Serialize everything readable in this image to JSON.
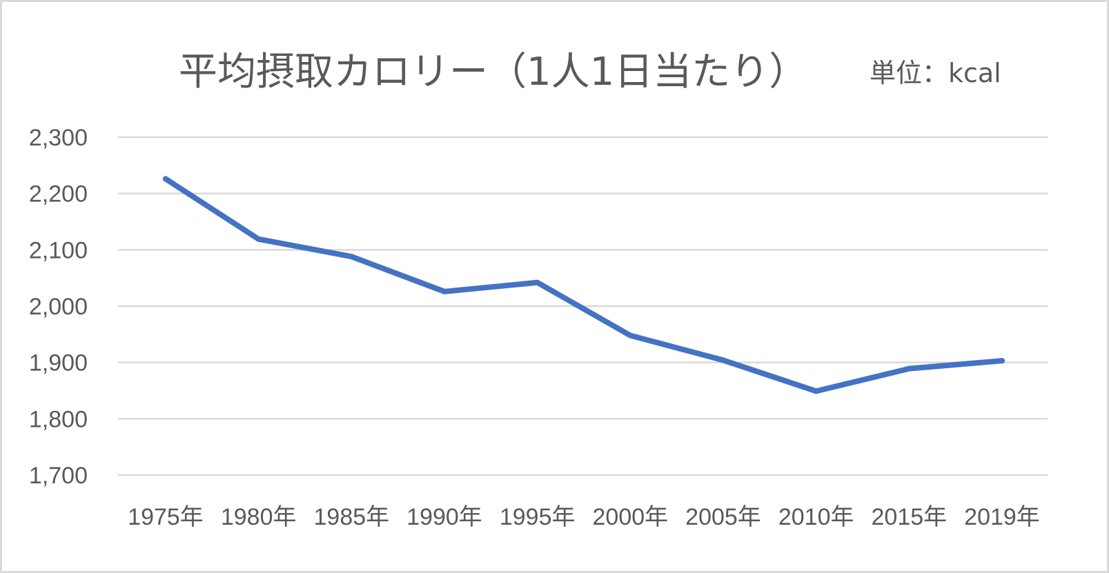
{
  "chart_data": {
    "type": "line",
    "title": "平均摂取カロリー（1人1日当たり）",
    "unit_label": "単位：kcal",
    "categories": [
      "1975年",
      "1980年",
      "1985年",
      "1990年",
      "1995年",
      "2000年",
      "2005年",
      "2010年",
      "2015年",
      "2019年"
    ],
    "series": [
      {
        "values": [
          2226,
          2119,
          2088,
          2026,
          2042,
          1948,
          1904,
          1849,
          1889,
          1903
        ]
      }
    ],
    "ylim": [
      1700,
      2300
    ],
    "yticks": [
      1700,
      1800,
      1900,
      2000,
      2100,
      2200,
      2300
    ],
    "ytick_labels": [
      "1,700",
      "1,800",
      "1,900",
      "2,000",
      "2,100",
      "2,200",
      "2,300"
    ],
    "grid": true,
    "legend": "none",
    "colors": {
      "line": "#4472c4",
      "grid": "#d9d9d9",
      "text": "#595959"
    }
  }
}
